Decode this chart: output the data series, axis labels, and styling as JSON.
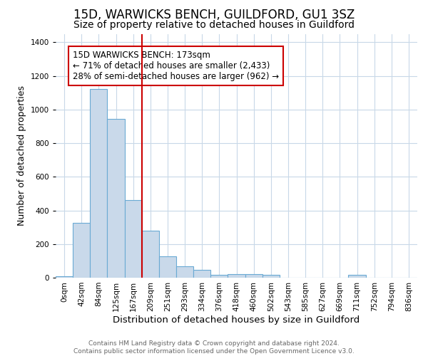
{
  "title": "15D, WARWICKS BENCH, GUILDFORD, GU1 3SZ",
  "subtitle": "Size of property relative to detached houses in Guildford",
  "xlabel": "Distribution of detached houses by size in Guildford",
  "ylabel": "Number of detached properties",
  "categories": [
    "0sqm",
    "42sqm",
    "84sqm",
    "125sqm",
    "167sqm",
    "209sqm",
    "251sqm",
    "293sqm",
    "334sqm",
    "376sqm",
    "418sqm",
    "460sqm",
    "502sqm",
    "543sqm",
    "585sqm",
    "627sqm",
    "669sqm",
    "711sqm",
    "752sqm",
    "794sqm",
    "836sqm"
  ],
  "values": [
    10,
    325,
    1120,
    945,
    460,
    280,
    128,
    68,
    45,
    18,
    22,
    22,
    15,
    0,
    0,
    0,
    0,
    15,
    0,
    0,
    0
  ],
  "bar_color": "#c9d9ea",
  "bar_edge_color": "#6aaad4",
  "vline_x_index": 4.5,
  "vline_color": "#cc0000",
  "annotation_text": "15D WARWICKS BENCH: 173sqm\n← 71% of detached houses are smaller (2,433)\n28% of semi-detached houses are larger (962) →",
  "annotation_box_color": "#ffffff",
  "annotation_box_edge_color": "#cc0000",
  "ylim": [
    0,
    1450
  ],
  "yticks": [
    0,
    200,
    400,
    600,
    800,
    1000,
    1200,
    1400
  ],
  "background_color": "#ffffff",
  "grid_color": "#c8d8e8",
  "footer_text": "Contains HM Land Registry data © Crown copyright and database right 2024.\nContains public sector information licensed under the Open Government Licence v3.0.",
  "title_fontsize": 12,
  "subtitle_fontsize": 10,
  "xlabel_fontsize": 9.5,
  "ylabel_fontsize": 9,
  "tick_fontsize": 7.5,
  "annotation_fontsize": 8.5,
  "footer_fontsize": 6.5
}
